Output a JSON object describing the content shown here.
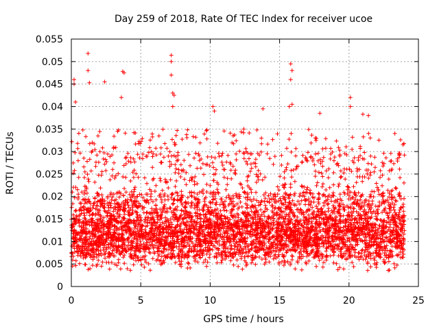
{
  "chart_data": {
    "type": "scatter",
    "title": "Day 259 of 2018, Rate Of TEC Index for receiver ucoe",
    "xlabel": "GPS time / hours",
    "ylabel": "ROTI / TECUs",
    "xlim": [
      0,
      25
    ],
    "ylim": [
      0,
      0.055
    ],
    "xticks": [
      0,
      5,
      10,
      15,
      20,
      25
    ],
    "xtick_labels": [
      "0",
      "5",
      "10",
      "15",
      "20",
      "25"
    ],
    "yticks": [
      0,
      0.005,
      0.01,
      0.015,
      0.02,
      0.025,
      0.03,
      0.035,
      0.04,
      0.045,
      0.05,
      0.055
    ],
    "ytick_labels": [
      "0",
      "0.005",
      "0.01",
      "0.015",
      "0.02",
      "0.025",
      "0.03",
      "0.035",
      "0.04",
      "0.045",
      "0.05",
      "0.055"
    ],
    "grid": true,
    "marker": "+",
    "color": "#ff0000",
    "data_x_range": [
      0,
      24
    ],
    "series": [
      {
        "name": "ROTI",
        "summary": "dense scatter of ROTI samples across 0-24 h, bulk between 0.005 and 0.02 TECU/s",
        "outliers": [
          {
            "x": 0.2,
            "y": 0.046
          },
          {
            "x": 0.2,
            "y": 0.045
          },
          {
            "x": 0.3,
            "y": 0.041
          },
          {
            "x": 1.2,
            "y": 0.0518
          },
          {
            "x": 1.2,
            "y": 0.048
          },
          {
            "x": 1.3,
            "y": 0.0453
          },
          {
            "x": 2.4,
            "y": 0.0455
          },
          {
            "x": 3.7,
            "y": 0.0478
          },
          {
            "x": 3.8,
            "y": 0.0475
          },
          {
            "x": 3.6,
            "y": 0.042
          },
          {
            "x": 7.2,
            "y": 0.0514
          },
          {
            "x": 7.2,
            "y": 0.05
          },
          {
            "x": 7.2,
            "y": 0.047
          },
          {
            "x": 7.3,
            "y": 0.043
          },
          {
            "x": 7.4,
            "y": 0.0425
          },
          {
            "x": 7.3,
            "y": 0.04
          },
          {
            "x": 10.2,
            "y": 0.04
          },
          {
            "x": 10.3,
            "y": 0.039
          },
          {
            "x": 13.8,
            "y": 0.0395
          },
          {
            "x": 15.8,
            "y": 0.0495
          },
          {
            "x": 15.9,
            "y": 0.048
          },
          {
            "x": 15.8,
            "y": 0.046
          },
          {
            "x": 15.9,
            "y": 0.0405
          },
          {
            "x": 15.7,
            "y": 0.04
          },
          {
            "x": 17.9,
            "y": 0.0385
          },
          {
            "x": 20.1,
            "y": 0.042
          },
          {
            "x": 20.1,
            "y": 0.04
          },
          {
            "x": 21.0,
            "y": 0.0383
          },
          {
            "x": 21.4,
            "y": 0.038
          },
          {
            "x": 23.3,
            "y": 0.034
          }
        ]
      }
    ]
  }
}
